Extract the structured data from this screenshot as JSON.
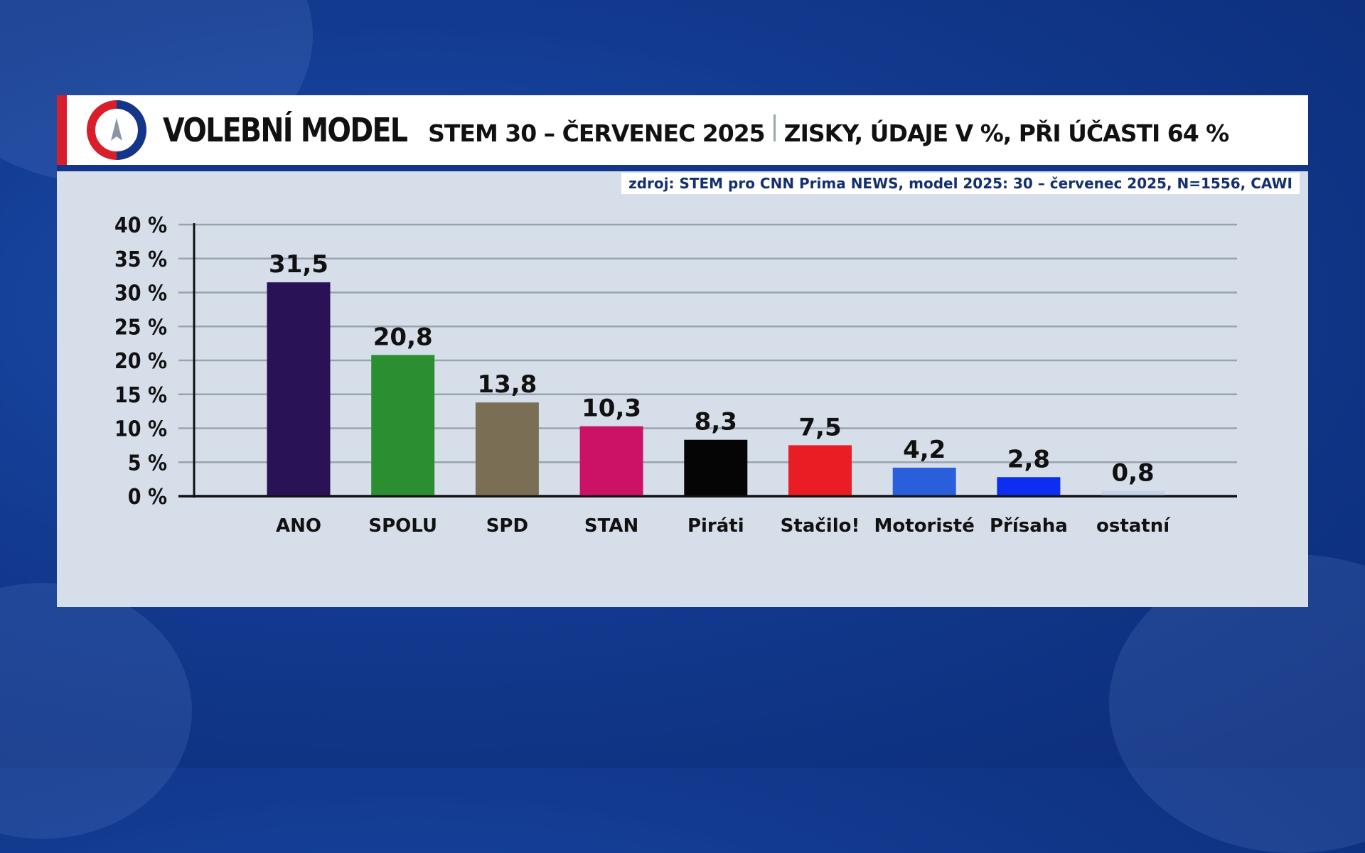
{
  "header": {
    "title": "VOLEBNÍ MODEL",
    "subtitle": "STEM 30 – ČERVENEC 2025",
    "subtitle2": "ZISKY, ÚDAJE V %, PŘI ÚČASTI 64 %"
  },
  "source": "zdroj: STEM pro CNN Prima NEWS, model 2025: 30 – červenec 2025, N=1556, CAWI",
  "colors": {
    "accent_red": "#d81e2a",
    "accent_blue": "#14368a"
  },
  "chart_data": {
    "type": "bar",
    "categories": [
      "ANO",
      "SPOLU",
      "SPD",
      "STAN",
      "Piráti",
      "Stačilo!",
      "Motoristé",
      "Přísaha",
      "ostatní"
    ],
    "values": [
      31.5,
      20.8,
      13.8,
      10.3,
      8.3,
      7.5,
      4.2,
      2.8,
      0.8
    ],
    "value_labels": [
      "31,5",
      "20,8",
      "13,8",
      "10,3",
      "8,3",
      "7,5",
      "4,2",
      "2,8",
      "0,8"
    ],
    "colors": [
      "#2a1257",
      "#2b8f32",
      "#7a6f55",
      "#cc1266",
      "#050505",
      "#ea1d25",
      "#2a5fdc",
      "#0d2ef0",
      "#c7d3ea"
    ],
    "yticks": [
      0,
      5,
      10,
      15,
      20,
      25,
      30,
      35,
      40
    ],
    "ytick_labels": [
      "0 %",
      "5 %",
      "10 %",
      "15 %",
      "20 %",
      "25 %",
      "30 %",
      "35 %",
      "40 %"
    ],
    "ylim": [
      0,
      40
    ],
    "grid": true,
    "xlabel": "",
    "ylabel": ""
  }
}
